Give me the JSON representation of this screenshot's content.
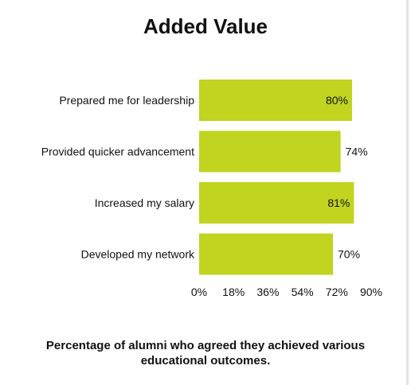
{
  "chart_data": {
    "type": "bar",
    "orientation": "horizontal",
    "title": "Added Value",
    "categories": [
      "Prepared me for leadership",
      "Provided quicker advancement",
      "Increased my salary",
      "Developed my network"
    ],
    "values": [
      80,
      74,
      81,
      70
    ],
    "value_labels": [
      "80%",
      "74%",
      "81%",
      "70%"
    ],
    "x_ticks": [
      "0%",
      "18%",
      "36%",
      "54%",
      "72%",
      "90%"
    ],
    "xlim": [
      0,
      90
    ],
    "bar_color": "#c0d420",
    "grid": false,
    "legend": "none"
  },
  "caption": {
    "line1": "Percentage of alumni who agreed they achieved various",
    "line2": "educational outcomes."
  }
}
